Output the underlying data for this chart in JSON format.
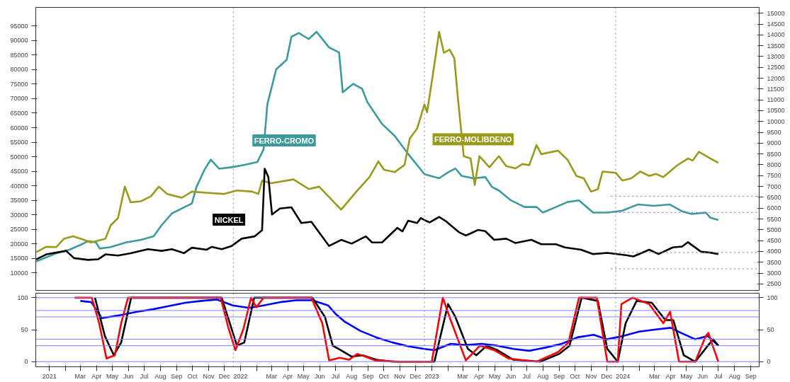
{
  "chart_data": [
    {
      "type": "line",
      "xlim": [
        "2020-12-20",
        "2024-10-01"
      ],
      "ylim": [
        4000,
        101400
      ],
      "y2lim": [
        2200,
        15270
      ],
      "yticks": [
        10000,
        15000,
        20000,
        25000,
        30000,
        35000,
        40000,
        45000,
        50000,
        55000,
        60000,
        65000,
        70000,
        75000,
        80000,
        85000,
        90000,
        95000
      ],
      "y2ticks": [
        2500,
        3000,
        3500,
        4000,
        4500,
        5000,
        5500,
        6000,
        6500,
        7000,
        7500,
        8000,
        8500,
        9000,
        9500,
        10000,
        10500,
        11000,
        11500,
        12000,
        12500,
        13000,
        13500,
        14000,
        14500,
        15000
      ],
      "tick_labels": "y",
      "grid": false,
      "ref_lines": [
        {
          "axis": "x",
          "value": "2022-01-01",
          "color": "#888888",
          "line_style": "dotted"
        },
        {
          "axis": "x",
          "value": "2023-01-01",
          "color": "#888888",
          "line_style": "dotted"
        },
        {
          "axis": "x",
          "value": "2024-01-01",
          "color": "#888888",
          "line_style": "dotted"
        }
      ],
      "series": [
        {
          "name": "FERRO-CROMO",
          "color": "#3a9a9e",
          "x": [
            "2020-12-21",
            "2021-01-28",
            "2021-02-22",
            "2021-03-16",
            "2021-03-30",
            "2021-04-14",
            "2021-04-21",
            "2021-05-12",
            "2021-06-10",
            "2021-07-09",
            "2021-08-02",
            "2021-08-17",
            "2021-09-06",
            "2021-09-25",
            "2021-10-14",
            "2021-10-23",
            "2021-11-07",
            "2021-11-19",
            "2021-12-05",
            "2021-12-29",
            "2022-01-23",
            "2022-02-16",
            "2022-02-28",
            "2022-03-07",
            "2022-03-24",
            "2022-04-13",
            "2022-04-22",
            "2022-05-06",
            "2022-05-25",
            "2022-06-09",
            "2022-07-03",
            "2022-07-22",
            "2022-07-29",
            "2022-08-18",
            "2022-09-04",
            "2022-09-14",
            "2022-10-12",
            "2022-11-05",
            "2022-11-29",
            "2023-01-01",
            "2023-01-29",
            "2023-02-14",
            "2023-03-01",
            "2023-03-13",
            "2023-04-05",
            "2023-04-27",
            "2023-05-10",
            "2023-05-23",
            "2023-06-15",
            "2023-07-11",
            "2023-08-03",
            "2023-08-15",
            "2023-09-09",
            "2023-10-01",
            "2023-10-23",
            "2023-11-19",
            "2023-12-16",
            "2024-01-13",
            "2024-01-31",
            "2024-02-13",
            "2024-03-14",
            "2024-04-13",
            "2024-05-07",
            "2024-05-25",
            "2024-06-21",
            "2024-06-30",
            "2024-07-15"
          ],
          "values": [
            14000,
            16800,
            18000,
            19700,
            21000,
            20500,
            18400,
            18900,
            20500,
            21400,
            22600,
            26400,
            30500,
            32200,
            33900,
            39700,
            45500,
            49000,
            45900,
            46400,
            47200,
            48200,
            52600,
            68000,
            80100,
            83400,
            91300,
            92600,
            90500,
            93000,
            87600,
            85900,
            72200,
            75100,
            73400,
            68800,
            61300,
            57200,
            51400,
            44000,
            42600,
            44500,
            46000,
            43400,
            42600,
            43000,
            39600,
            38400,
            35000,
            32700,
            32700,
            30800,
            32700,
            34400,
            35000,
            30800,
            30800,
            31400,
            32700,
            33600,
            33100,
            33600,
            31200,
            30300,
            30800,
            29000,
            28200
          ]
        },
        {
          "name": "FERRO-MOLIBDENO",
          "color": "#9a9a1a",
          "x": [
            "2020-12-21",
            "2021-01-09",
            "2021-01-28",
            "2021-02-12",
            "2021-03-01",
            "2021-03-16",
            "2021-04-04",
            "2021-05-02",
            "2021-05-12",
            "2021-05-26",
            "2021-06-08",
            "2021-06-19",
            "2021-07-09",
            "2021-07-28",
            "2021-08-12",
            "2021-08-28",
            "2021-09-25",
            "2021-10-14",
            "2021-11-11",
            "2021-12-14",
            "2022-01-08",
            "2022-02-06",
            "2022-02-18",
            "2022-02-25",
            "2022-03-14",
            "2022-04-26",
            "2022-05-25",
            "2022-06-14",
            "2022-07-26",
            "2022-08-24",
            "2022-09-18",
            "2022-10-05",
            "2022-10-16",
            "2022-11-05",
            "2022-11-24",
            "2022-12-04",
            "2022-12-18",
            "2023-01-01",
            "2023-01-06",
            "2023-01-17",
            "2023-01-29",
            "2023-02-07",
            "2023-02-18",
            "2023-02-27",
            "2023-03-06",
            "2023-03-17",
            "2023-03-30",
            "2023-04-07",
            "2023-04-16",
            "2023-05-05",
            "2023-05-23",
            "2023-06-06",
            "2023-06-24",
            "2023-07-07",
            "2023-07-20",
            "2023-08-03",
            "2023-08-12",
            "2023-09-13",
            "2023-10-01",
            "2023-10-18",
            "2023-11-01",
            "2023-11-15",
            "2023-11-28",
            "2023-12-07",
            "2024-01-01",
            "2024-01-14",
            "2024-01-31",
            "2024-02-17",
            "2024-03-05",
            "2024-03-18",
            "2024-04-01",
            "2024-04-28",
            "2024-05-18",
            "2024-05-27",
            "2024-06-08",
            "2024-06-30",
            "2024-07-15"
          ],
          "values": [
            17200,
            19000,
            18900,
            21800,
            22600,
            21800,
            20500,
            21800,
            26400,
            28900,
            39700,
            34300,
            34700,
            36400,
            39700,
            37200,
            35900,
            38000,
            37600,
            37200,
            38400,
            38000,
            37200,
            41800,
            40900,
            42200,
            38900,
            39700,
            31800,
            38000,
            43000,
            48400,
            45500,
            44700,
            47200,
            56300,
            59700,
            68000,
            65300,
            78200,
            93000,
            85800,
            86900,
            83900,
            69900,
            50200,
            49400,
            40300,
            50200,
            46400,
            50200,
            46800,
            46000,
            47500,
            47100,
            54000,
            50900,
            52100,
            49000,
            43400,
            42600,
            38000,
            38800,
            44900,
            44500,
            41800,
            42600,
            44900,
            43400,
            44100,
            43000,
            47100,
            49400,
            48700,
            51700,
            49400,
            47900
          ]
        },
        {
          "name": "NICKEL",
          "color": "#000000",
          "x": [
            "2020-12-21",
            "2021-01-09",
            "2021-02-16",
            "2021-03-03",
            "2021-03-30",
            "2021-04-18",
            "2021-05-02",
            "2021-05-26",
            "2021-06-19",
            "2021-07-22",
            "2021-08-17",
            "2021-09-06",
            "2021-09-29",
            "2021-10-14",
            "2021-11-11",
            "2021-11-21",
            "2021-12-10",
            "2021-12-29",
            "2022-01-17",
            "2022-02-11",
            "2022-02-25",
            "2022-03-02",
            "2022-03-09",
            "2022-03-16",
            "2022-03-31",
            "2022-04-22",
            "2022-05-11",
            "2022-05-30",
            "2022-07-03",
            "2022-07-26",
            "2022-08-15",
            "2022-09-11",
            "2022-09-23",
            "2022-10-12",
            "2022-11-10",
            "2022-11-20",
            "2022-12-01",
            "2022-12-18",
            "2022-12-25",
            "2023-01-01",
            "2023-01-11",
            "2023-01-29",
            "2023-02-11",
            "2023-03-08",
            "2023-03-21",
            "2023-03-30",
            "2023-04-13",
            "2023-04-27",
            "2023-05-14",
            "2023-06-06",
            "2023-06-24",
            "2023-07-24",
            "2023-08-12",
            "2023-09-09",
            "2023-09-26",
            "2023-10-27",
            "2023-11-19",
            "2023-12-16",
            "2024-01-21",
            "2024-02-04",
            "2024-03-05",
            "2024-03-23",
            "2024-04-19",
            "2024-05-07",
            "2024-05-18",
            "2024-06-12",
            "2024-06-30",
            "2024-07-15"
          ],
          "values": [
            14700,
            16400,
            17600,
            15100,
            14500,
            14700,
            16400,
            16000,
            16800,
            18200,
            17600,
            18200,
            16800,
            18700,
            18000,
            19000,
            18200,
            19300,
            21800,
            22600,
            24700,
            45900,
            43000,
            30100,
            32200,
            32600,
            27200,
            27600,
            19300,
            21400,
            20100,
            22600,
            20500,
            20500,
            25500,
            24300,
            28000,
            27200,
            28900,
            28200,
            27400,
            29300,
            27800,
            24000,
            22900,
            23600,
            24800,
            24400,
            21400,
            21800,
            20300,
            21400,
            19900,
            19900,
            18800,
            18000,
            16500,
            16900,
            16100,
            15700,
            18000,
            16500,
            18800,
            19100,
            20600,
            17300,
            17000,
            16500
          ]
        },
        {
          "color": "#8080e0",
          "axis": "y2",
          "line_style": "dotted",
          "x": [
            "2023-12-23",
            "2024-10-01"
          ],
          "values": [
            6550,
            6550
          ]
        },
        {
          "color": "#8080e0",
          "axis": "y2",
          "line_style": "dotted",
          "x": [
            "2023-12-23",
            "2024-10-01"
          ],
          "values": [
            5800,
            5800
          ]
        },
        {
          "color": "#8080e0",
          "axis": "y2",
          "line_style": "dotted",
          "x": [
            "2023-12-23",
            "2024-10-01"
          ],
          "values": [
            3950,
            3950
          ]
        },
        {
          "color": "#8080e0",
          "axis": "y2",
          "line_style": "dotted",
          "x": [
            "2023-12-23",
            "2024-10-01"
          ],
          "values": [
            3200,
            3200
          ]
        }
      ]
    },
    {
      "type": "line",
      "xlim": [
        "2020-12-20",
        "2024-10-01"
      ],
      "ylim": [
        -8,
        107
      ],
      "y2lim": [
        -8,
        107
      ],
      "yticks": [
        0,
        50,
        100
      ],
      "y2ticks": [
        0,
        50,
        100
      ],
      "grid": false,
      "xticks": [
        {
          "value": "2021-01-15",
          "label": "2021"
        },
        {
          "value": "2021-02-15",
          "label": null
        },
        {
          "value": "2021-03-15",
          "label": "Mar"
        },
        {
          "value": "2021-04-15",
          "label": "Apr"
        },
        {
          "value": "2021-05-15",
          "label": "May"
        },
        {
          "value": "2021-06-15",
          "label": "Jun"
        },
        {
          "value": "2021-07-15",
          "label": "Jul"
        },
        {
          "value": "2021-08-15",
          "label": "Aug"
        },
        {
          "value": "2021-09-15",
          "label": "Sep"
        },
        {
          "value": "2021-10-15",
          "label": "Oct"
        },
        {
          "value": "2021-11-15",
          "label": "Nov"
        },
        {
          "value": "2021-12-15",
          "label": "Dec"
        },
        {
          "value": "2022-01-15",
          "label": "2022"
        },
        {
          "value": "2022-02-15",
          "label": null
        },
        {
          "value": "2022-03-15",
          "label": "Mar"
        },
        {
          "value": "2022-04-15",
          "label": "Apr"
        },
        {
          "value": "2022-05-15",
          "label": "May"
        },
        {
          "value": "2022-06-15",
          "label": "Jun"
        },
        {
          "value": "2022-07-15",
          "label": "Jul"
        },
        {
          "value": "2022-08-15",
          "label": "Aug"
        },
        {
          "value": "2022-09-15",
          "label": "Sep"
        },
        {
          "value": "2022-10-15",
          "label": "Oct"
        },
        {
          "value": "2022-11-15",
          "label": "Nov"
        },
        {
          "value": "2022-12-15",
          "label": "Dec"
        },
        {
          "value": "2023-01-15",
          "label": "2023"
        },
        {
          "value": "2023-02-15",
          "label": null
        },
        {
          "value": "2023-03-15",
          "label": "Mar"
        },
        {
          "value": "2023-04-15",
          "label": "Apr"
        },
        {
          "value": "2023-05-15",
          "label": "May"
        },
        {
          "value": "2023-06-15",
          "label": "Jun"
        },
        {
          "value": "2023-07-15",
          "label": "Jul"
        },
        {
          "value": "2023-08-15",
          "label": "Aug"
        },
        {
          "value": "2023-09-15",
          "label": "Sep"
        },
        {
          "value": "2023-10-15",
          "label": "Oct"
        },
        {
          "value": "2023-11-15",
          "label": "Nov"
        },
        {
          "value": "2023-12-15",
          "label": "Dec"
        },
        {
          "value": "2024-01-15",
          "label": "2024"
        },
        {
          "value": "2024-02-15",
          "label": null
        },
        {
          "value": "2024-03-15",
          "label": "Mar"
        },
        {
          "value": "2024-04-15",
          "label": "Apr"
        },
        {
          "value": "2024-05-15",
          "label": "May"
        },
        {
          "value": "2024-06-15",
          "label": "Jun"
        },
        {
          "value": "2024-07-15",
          "label": "Jul"
        },
        {
          "value": "2024-08-15",
          "label": "Aug"
        },
        {
          "value": "2024-09-15",
          "label": "Sep"
        }
      ],
      "ref_lines": [
        {
          "axis": "y",
          "value": 100,
          "color": "#8080ff"
        },
        {
          "axis": "y",
          "value": 80,
          "color": "#8080ff"
        },
        {
          "axis": "y",
          "value": 70,
          "color": "#8080ff"
        },
        {
          "axis": "y",
          "value": 35,
          "color": "#8080ff"
        },
        {
          "axis": "y",
          "value": 25,
          "color": "#8080ff"
        },
        {
          "axis": "y",
          "value": 0,
          "color": "#8080ff"
        },
        {
          "axis": "x",
          "value": "2022-01-01",
          "color": "#888888",
          "line_style": "dotted"
        },
        {
          "axis": "x",
          "value": "2023-01-01",
          "color": "#888888",
          "line_style": "dotted"
        },
        {
          "axis": "x",
          "value": "2024-01-01",
          "color": "#888888",
          "line_style": "dotted"
        }
      ],
      "series": [
        {
          "color": "#0000ff",
          "x": [
            "2021-03-15",
            "2021-04-05",
            "2021-04-25",
            "2021-06-01",
            "2021-07-01",
            "2021-08-01",
            "2021-09-01",
            "2021-10-01",
            "2021-11-01",
            "2021-12-01",
            "2021-12-31",
            "2022-01-31",
            "2022-02-28",
            "2022-03-31",
            "2022-05-01",
            "2022-06-01",
            "2022-07-01",
            "2022-07-15",
            "2022-08-01",
            "2022-09-01",
            "2022-10-01",
            "2022-11-01",
            "2022-12-01",
            "2023-01-01",
            "2023-01-20",
            "2023-02-20",
            "2023-03-20",
            "2023-04-20",
            "2023-05-20",
            "2023-06-20",
            "2023-07-20",
            "2023-08-20",
            "2023-09-20",
            "2023-10-20",
            "2023-11-20",
            "2023-12-15",
            "2024-01-15",
            "2024-02-15",
            "2024-03-15",
            "2024-04-15",
            "2024-05-05",
            "2024-06-01",
            "2024-06-25",
            "2024-07-15"
          ],
          "values": [
            95,
            93,
            68,
            73,
            78,
            82,
            87,
            92,
            95,
            97,
            88,
            84,
            88,
            93,
            96,
            96,
            88,
            75,
            63,
            48,
            38,
            30,
            24,
            20,
            18,
            28,
            26,
            28,
            25,
            20,
            17,
            22,
            28,
            38,
            42,
            35,
            40,
            47,
            50,
            53,
            45,
            35,
            40,
            25
          ]
        },
        {
          "color": "#000000",
          "x": [
            "2021-04-12",
            "2021-05-01",
            "2021-05-18",
            "2021-06-01",
            "2021-06-20",
            "2021-12-10",
            "2022-01-08",
            "2022-01-22",
            "2022-02-10",
            "2022-06-01",
            "2022-06-25",
            "2022-07-10",
            "2022-07-25",
            "2022-08-15",
            "2022-09-05",
            "2022-10-01",
            "2022-11-01",
            "2023-01-20",
            "2023-02-15",
            "2023-03-01",
            "2023-03-25",
            "2023-04-10",
            "2023-04-30",
            "2023-05-20",
            "2023-06-20",
            "2023-08-10",
            "2023-09-15",
            "2023-10-05",
            "2023-10-28",
            "2023-11-28",
            "2023-12-16",
            "2024-01-05",
            "2024-01-20",
            "2024-02-10",
            "2024-03-10",
            "2024-04-05",
            "2024-04-20",
            "2024-05-10",
            "2024-06-01",
            "2024-06-25",
            "2024-07-05",
            "2024-07-15"
          ],
          "values": [
            100,
            40,
            10,
            30,
            100,
            100,
            25,
            30,
            100,
            100,
            70,
            25,
            18,
            8,
            10,
            3,
            0,
            0,
            90,
            70,
            20,
            10,
            25,
            18,
            3,
            0,
            12,
            25,
            100,
            95,
            20,
            0,
            60,
            95,
            92,
            65,
            65,
            10,
            0,
            25,
            35,
            25
          ]
        },
        {
          "color": "#ff0000",
          "x": [
            "2021-03-04",
            "2021-04-06",
            "2021-04-20",
            "2021-05-04",
            "2021-05-20",
            "2021-06-01",
            "2021-06-14",
            "2021-12-08",
            "2021-12-22",
            "2022-01-05",
            "2022-01-20",
            "2022-02-04",
            "2022-02-14",
            "2022-02-28",
            "2022-05-30",
            "2022-06-20",
            "2022-07-03",
            "2022-07-23",
            "2022-08-10",
            "2022-08-26",
            "2022-09-10",
            "2022-09-29",
            "2022-11-15",
            "2023-01-15",
            "2023-02-05",
            "2023-02-20",
            "2023-03-21",
            "2023-04-17",
            "2023-05-14",
            "2023-06-10",
            "2023-08-03",
            "2023-09-13",
            "2023-10-03",
            "2023-10-23",
            "2023-11-26",
            "2023-12-16",
            "2024-01-05",
            "2024-01-12",
            "2024-02-02",
            "2024-03-05",
            "2024-04-01",
            "2024-04-14",
            "2024-05-01",
            "2024-06-01",
            "2024-06-21",
            "2024-06-26",
            "2024-07-02",
            "2024-07-15"
          ],
          "values": [
            100,
            100,
            60,
            5,
            10,
            60,
            100,
            100,
            55,
            18,
            50,
            100,
            85,
            100,
            100,
            60,
            2,
            6,
            3,
            12,
            8,
            2,
            0,
            0,
            100,
            65,
            2,
            25,
            18,
            5,
            0,
            15,
            30,
            100,
            100,
            0,
            0,
            90,
            100,
            90,
            60,
            78,
            0,
            0,
            40,
            45,
            30,
            0
          ]
        }
      ]
    }
  ]
}
